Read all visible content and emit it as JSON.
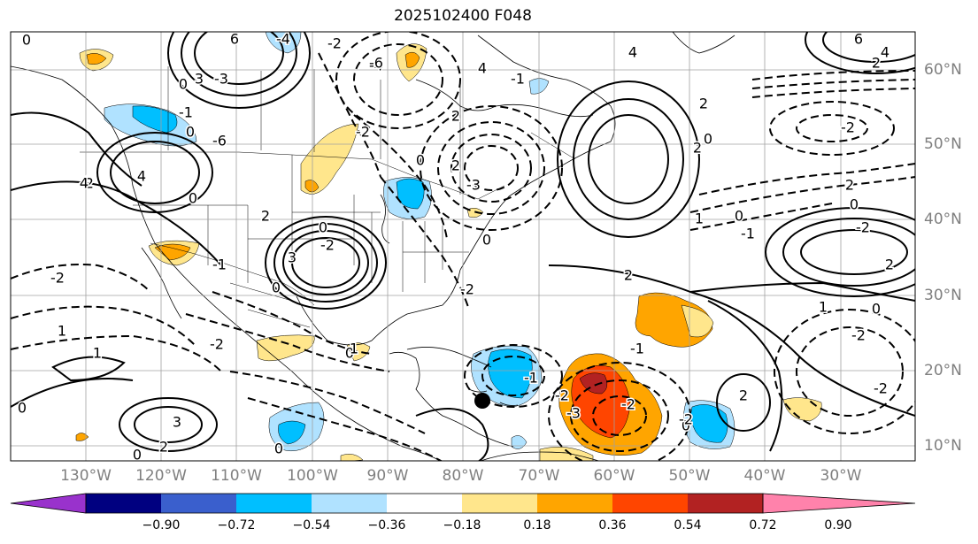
{
  "title": "2025102400 F048",
  "lon_labels": [
    "130°W",
    "120°W",
    "110°W",
    "100°W",
    "90°W",
    "80°W",
    "70°W",
    "60°W",
    "50°W",
    "40°W",
    "30°W"
  ],
  "lat_labels": [
    "60°N",
    "50°N",
    "40°N",
    "30°N",
    "20°N",
    "10°N"
  ],
  "colorbar": {
    "colors": [
      "#9932cc",
      "#000080",
      "#3a5fcd",
      "#00bfff",
      "#b0e2ff",
      "#ffffff",
      "#ffe68c",
      "#ffa500",
      "#ff4500",
      "#b22222",
      "#ff82ab"
    ],
    "ticks": [
      "−0.90",
      "−0.72",
      "−0.54",
      "−0.36",
      "−0.18",
      "0.18",
      "0.36",
      "0.54",
      "0.72",
      "0.90"
    ]
  },
  "contour_labels": [
    "0",
    "6",
    "3",
    "0",
    "-1",
    "-3",
    "0",
    "4",
    "-2",
    "0",
    "-6",
    "-4",
    "-2",
    "-4",
    "-2",
    "0",
    "-2",
    "2",
    "-1",
    "-2",
    "4",
    "3",
    "0",
    "-2",
    "1",
    "-6",
    "4",
    "2",
    "2",
    "0",
    "-1",
    "-3",
    "0",
    "-2",
    "0",
    "1",
    "-1",
    "-2",
    "-3",
    "-2",
    "0",
    "3",
    "2",
    "0",
    "2",
    "-2",
    "2",
    "1",
    "-2",
    "0",
    "2",
    "1",
    "0",
    "6",
    "4",
    "2",
    "4",
    "2",
    "0",
    "2",
    "-2",
    "0",
    "-1",
    "-2",
    "-2",
    "2",
    "-1",
    "1",
    "0",
    "0"
  ],
  "marker": {
    "name": "storm-position",
    "lon": -79,
    "lat": 16
  }
}
